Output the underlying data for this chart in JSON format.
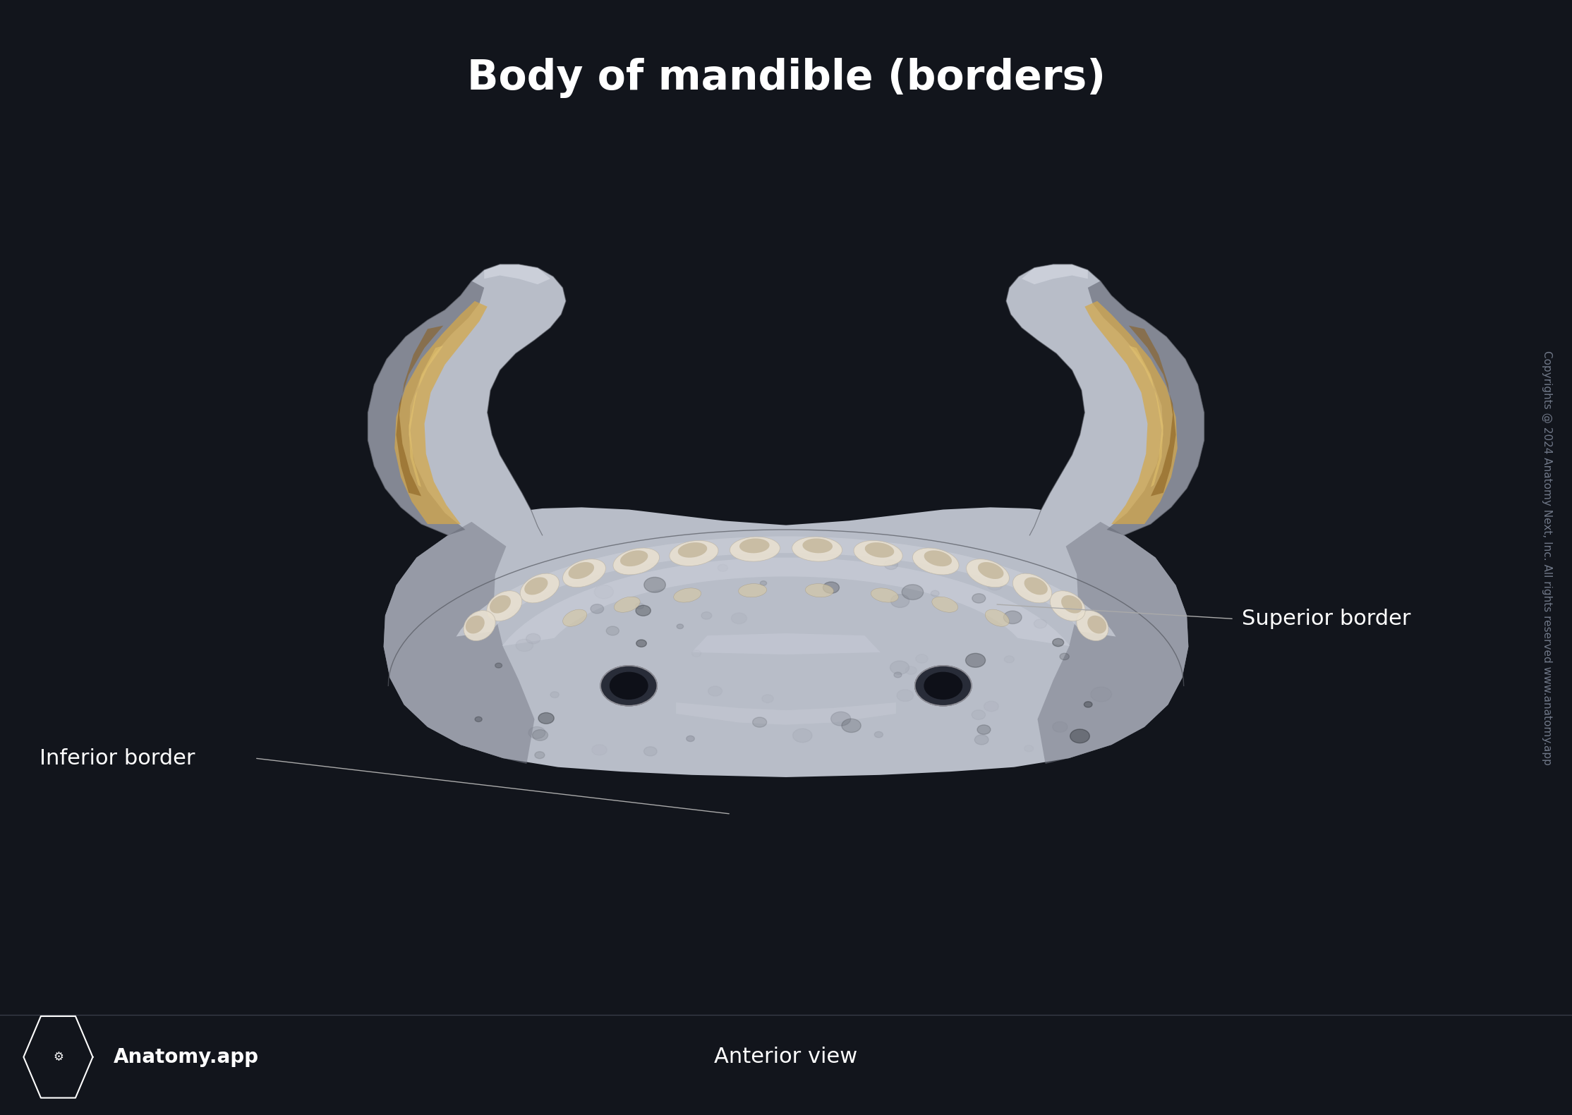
{
  "title": "Body of mandible (borders)",
  "title_fontsize": 42,
  "title_color": "#ffffff",
  "title_fontweight": "bold",
  "background_color": "#12151c",
  "fig_width": 22.28,
  "fig_height": 15.81,
  "label_superior": "Superior border",
  "label_inferior": "Inferior border",
  "label_anterior": "Anterior view",
  "label_app": "Anatomy.app",
  "label_fontsize": 22,
  "label_color": "#ffffff",
  "copyright_text": "Copyrights @ 2024 Anatomy Next, Inc. All rights reserved www.anatomy.app",
  "copyright_fontsize": 11,
  "line_color": "#aaaaaa",
  "bone_main": "#b8bdc8",
  "bone_shadow": "#7a7e8a",
  "bone_highlight": "#d8dce6",
  "bone_dark": "#606470",
  "gold_bright": "#d4a84b",
  "gold_dark": "#8a6020",
  "bg": "#12151c"
}
